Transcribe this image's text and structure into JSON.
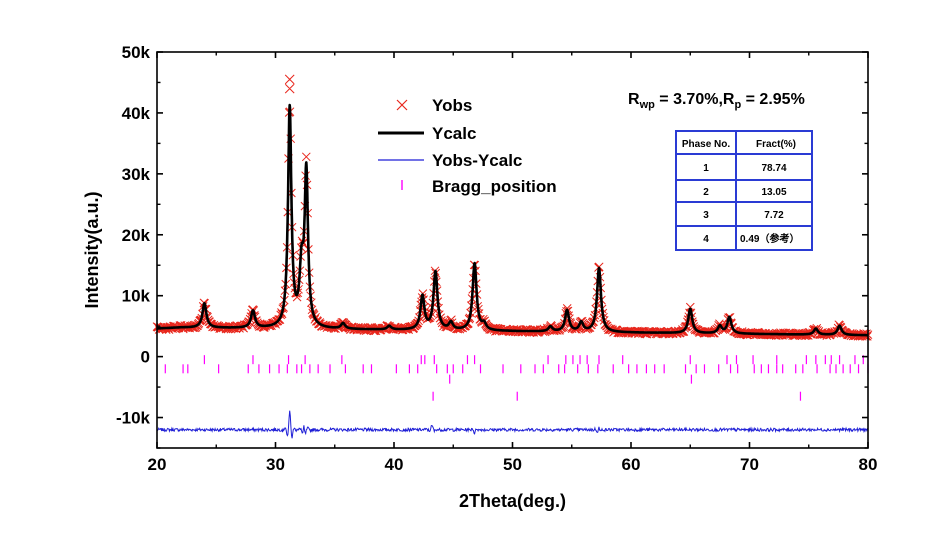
{
  "chart_data": {
    "type": "line",
    "xlabel": "2Theta(deg.)",
    "ylabel": "Intensity(a.u.)",
    "xlim": [
      20,
      80
    ],
    "ylim": [
      -15000,
      50000
    ],
    "x_ticks": [
      20,
      30,
      40,
      50,
      60,
      70,
      80
    ],
    "x_tick_labels": [
      "20",
      "30",
      "40",
      "50",
      "60",
      "70",
      "80"
    ],
    "y_ticks": [
      -10000,
      0,
      10000,
      20000,
      30000,
      40000,
      50000
    ],
    "y_tick_labels": [
      "-10k",
      "0",
      "10k",
      "20k",
      "30k",
      "40k",
      "50k"
    ],
    "grid": false,
    "legend_position": "top-center",
    "legend": [
      "Yobs",
      "Ycalc",
      "Yobs-Ycalc",
      "Bragg_position"
    ],
    "colors": {
      "yobs": "#e8261c",
      "ycalc": "#000000",
      "diff": "#1f1fd6",
      "bragg": "#ff00ff"
    },
    "background": {
      "start": 4800,
      "end": 3500
    },
    "peaks": [
      {
        "x": 24.0,
        "height": 4000
      },
      {
        "x": 28.1,
        "height": 2800
      },
      {
        "x": 31.2,
        "height": 36000
      },
      {
        "x": 32.2,
        "height": 9000
      },
      {
        "x": 32.6,
        "height": 25000
      },
      {
        "x": 35.7,
        "height": 900
      },
      {
        "x": 39.6,
        "height": 600
      },
      {
        "x": 42.4,
        "height": 5500
      },
      {
        "x": 43.5,
        "height": 9500
      },
      {
        "x": 44.8,
        "height": 1200
      },
      {
        "x": 46.8,
        "height": 11000
      },
      {
        "x": 47.6,
        "height": 1000
      },
      {
        "x": 53.2,
        "height": 800
      },
      {
        "x": 54.6,
        "height": 3500
      },
      {
        "x": 55.8,
        "height": 1500
      },
      {
        "x": 57.3,
        "height": 10500
      },
      {
        "x": 65.0,
        "height": 4000
      },
      {
        "x": 67.5,
        "height": 1200
      },
      {
        "x": 68.3,
        "height": 2700
      },
      {
        "x": 75.6,
        "height": 1000
      },
      {
        "x": 77.6,
        "height": 1500
      }
    ],
    "observed_max_markers": [
      {
        "x": 31.2,
        "y": 45500
      },
      {
        "x": 31.2,
        "y": 44000
      }
    ],
    "difference_offset": -12000,
    "difference_features": [
      {
        "x": 31.2,
        "amplitude": 3300
      },
      {
        "x": 32.4,
        "amplitude": 1200
      },
      {
        "x": 43.2,
        "amplitude": 700
      },
      {
        "x": 46.8,
        "amplitude": 600
      },
      {
        "x": 57.3,
        "amplitude": 500
      }
    ],
    "bragg_rows": [
      {
        "phase": 1,
        "y": -500,
        "positions": [
          24.0,
          28.1,
          31.1,
          32.5,
          35.6,
          42.3,
          42.6,
          43.4,
          46.2,
          46.8,
          53.0,
          54.5,
          55.1,
          55.7,
          56.3,
          57.3,
          59.3,
          65.0,
          68.1,
          68.9,
          70.3,
          72.3,
          74.8,
          75.6,
          76.4,
          76.9,
          77.6,
          78.9,
          79.6
        ]
      },
      {
        "phase": 2,
        "y": -2000,
        "positions": [
          20.7,
          22.2,
          22.6,
          25.2,
          27.7,
          28.6,
          29.5,
          30.3,
          31.0,
          31.8,
          32.2,
          32.9,
          33.6,
          34.6,
          35.9,
          37.4,
          38.1,
          40.2,
          41.3,
          42.0,
          43.6,
          44.5,
          45.0,
          45.8,
          47.3,
          49.2,
          50.7,
          51.9,
          52.6,
          53.9,
          54.4,
          55.5,
          56.4,
          57.2,
          58.5,
          59.8,
          60.5,
          61.3,
          62.0,
          62.8,
          64.6,
          65.5,
          66.2,
          67.4,
          68.4,
          69.0,
          70.4,
          71.0,
          71.6,
          72.3,
          72.8,
          73.9,
          74.5,
          75.7,
          76.8,
          77.3,
          77.9,
          78.5,
          79.2,
          80.0
        ]
      },
      {
        "phase": 3,
        "y": -3700,
        "positions": [
          44.7,
          65.1
        ]
      },
      {
        "phase": 4,
        "y": -6500,
        "positions": [
          43.3,
          50.4,
          74.3
        ]
      }
    ],
    "fit_stats": {
      "prefix": "R",
      "rwp_sub": "wp",
      "rwp_value": " = 3.70%,",
      "rp_sub": "p",
      "rp_value": " = 2.95%"
    },
    "phase_table": {
      "headers": [
        "Phase No.",
        "Fract(%)"
      ],
      "rows": [
        [
          "1",
          "78.74"
        ],
        [
          "2",
          "13.05"
        ],
        [
          "3",
          "7.72"
        ],
        [
          "4",
          "0.49（参考）"
        ]
      ]
    }
  }
}
